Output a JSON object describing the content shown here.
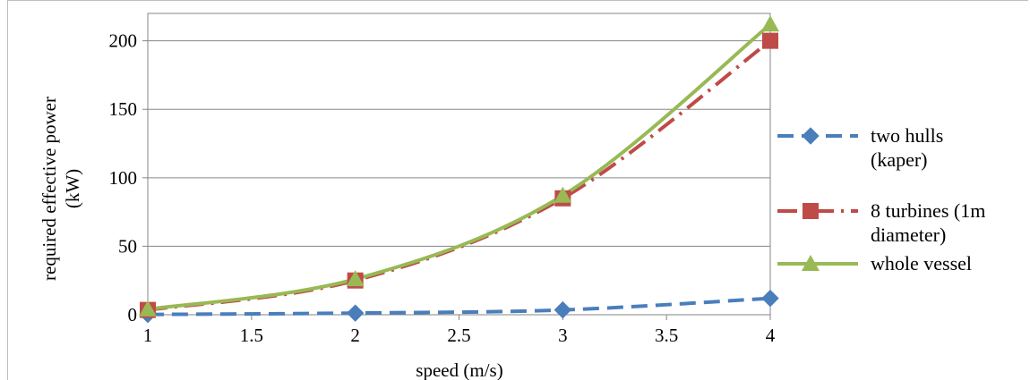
{
  "chart_data": {
    "type": "line",
    "xlabel": "speed (m/s)",
    "ylabel": [
      "required effective power",
      "(kW)"
    ],
    "xlim": [
      1,
      4
    ],
    "ylim": [
      0,
      220
    ],
    "x_ticks": [
      "1",
      "1.5",
      "2",
      "2.5",
      "3",
      "3.5",
      "4"
    ],
    "y_ticks": [
      "0",
      "50",
      "100",
      "150",
      "200"
    ],
    "grid": "horizontal",
    "legend_position": "right",
    "x": [
      1,
      2,
      3,
      4
    ],
    "series": [
      {
        "name_lines": [
          "two hulls",
          "(kaper)"
        ],
        "values": [
          0.2,
          1.2,
          3.5,
          12
        ],
        "color": "#4a7ebb",
        "marker": "diamond",
        "dash": "dashed"
      },
      {
        "name_lines": [
          "8 turbines (1m",
          "diameter)"
        ],
        "values": [
          3.5,
          25,
          85,
          200
        ],
        "color": "#be4b48",
        "marker": "square",
        "dash": "dash-dot"
      },
      {
        "name_lines": [
          "whole vessel"
        ],
        "values": [
          4,
          26,
          87,
          212
        ],
        "color": "#98b954",
        "marker": "triangle",
        "dash": "solid"
      }
    ]
  }
}
